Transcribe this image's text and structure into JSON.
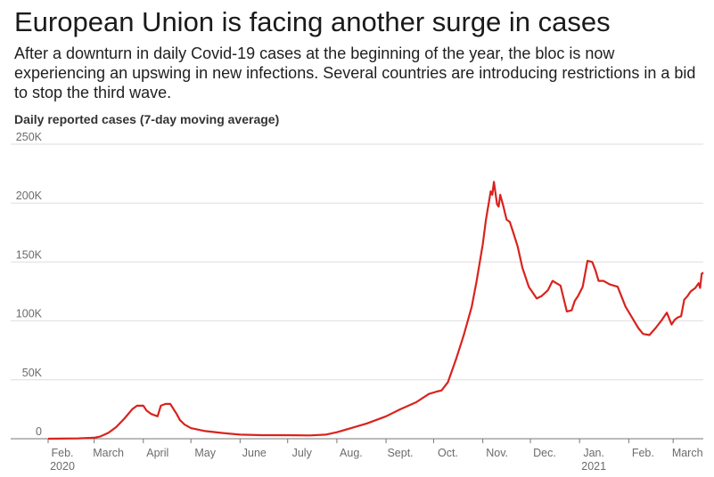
{
  "title": "European Union is facing another surge in cases",
  "subtitle": "After a downturn in daily Covid-19 cases at the beginning of the year, the bloc is now experiencing an upswing in new infections. Several countries are introducing restrictions in a bid to stop the third wave.",
  "chart_data": {
    "type": "line",
    "title": "European Union is facing another surge in cases",
    "ylabel": "Daily reported cases (7-day moving average)",
    "xlabel": "",
    "x_range": [
      "2020-02-01",
      "2021-03-20"
    ],
    "ylim": [
      0,
      250000
    ],
    "y_ticks": [
      {
        "value": 0,
        "label": "0"
      },
      {
        "value": 50000,
        "label": "50K"
      },
      {
        "value": 100000,
        "label": "100K"
      },
      {
        "value": 150000,
        "label": "150K"
      },
      {
        "value": 200000,
        "label": "200K"
      },
      {
        "value": 250000,
        "label": "250K"
      }
    ],
    "x_ticks": [
      {
        "date": "2020-02-01",
        "label": "Feb.",
        "sublabel": "2020"
      },
      {
        "date": "2020-03-01",
        "label": "March",
        "sublabel": ""
      },
      {
        "date": "2020-04-01",
        "label": "April",
        "sublabel": ""
      },
      {
        "date": "2020-05-01",
        "label": "May",
        "sublabel": ""
      },
      {
        "date": "2020-06-01",
        "label": "June",
        "sublabel": ""
      },
      {
        "date": "2020-07-01",
        "label": "July",
        "sublabel": ""
      },
      {
        "date": "2020-08-01",
        "label": "Aug.",
        "sublabel": ""
      },
      {
        "date": "2020-09-01",
        "label": "Sept.",
        "sublabel": ""
      },
      {
        "date": "2020-10-01",
        "label": "Oct.",
        "sublabel": ""
      },
      {
        "date": "2020-11-01",
        "label": "Nov.",
        "sublabel": ""
      },
      {
        "date": "2020-12-01",
        "label": "Dec.",
        "sublabel": ""
      },
      {
        "date": "2021-01-01",
        "label": "Jan.",
        "sublabel": "2021"
      },
      {
        "date": "2021-02-01",
        "label": "Feb.",
        "sublabel": ""
      },
      {
        "date": "2021-03-01",
        "label": "March",
        "sublabel": ""
      }
    ],
    "grid": true,
    "line_color": "#d9231d",
    "series": [
      {
        "x": [
          "2020-02-01",
          "2020-02-20",
          "2020-03-01",
          "2020-03-05",
          "2020-03-10",
          "2020-03-15",
          "2020-03-20",
          "2020-03-25",
          "2020-03-28",
          "2020-04-01",
          "2020-04-03",
          "2020-04-06",
          "2020-04-10",
          "2020-04-12",
          "2020-04-15",
          "2020-04-18",
          "2020-04-22",
          "2020-04-24",
          "2020-04-27",
          "2020-05-01",
          "2020-05-10",
          "2020-05-20",
          "2020-06-01",
          "2020-06-15",
          "2020-07-01",
          "2020-07-15",
          "2020-07-25",
          "2020-08-01",
          "2020-08-10",
          "2020-08-20",
          "2020-09-01",
          "2020-09-10",
          "2020-09-20",
          "2020-09-28",
          "2020-10-03",
          "2020-10-06",
          "2020-10-10",
          "2020-10-15",
          "2020-10-20",
          "2020-10-25",
          "2020-10-28",
          "2020-11-01",
          "2020-11-03",
          "2020-11-06",
          "2020-11-07",
          "2020-11-08",
          "2020-11-10",
          "2020-11-11",
          "2020-11-12",
          "2020-11-14",
          "2020-11-16",
          "2020-11-18",
          "2020-11-20",
          "2020-11-23",
          "2020-11-26",
          "2020-11-30",
          "2020-12-05",
          "2020-12-08",
          "2020-12-12",
          "2020-12-15",
          "2020-12-20",
          "2020-12-24",
          "2020-12-27",
          "2020-12-29",
          "2020-12-31",
          "2021-01-03",
          "2021-01-06",
          "2021-01-09",
          "2021-01-11",
          "2021-01-13",
          "2021-01-16",
          "2021-01-20",
          "2021-01-25",
          "2021-01-30",
          "2021-02-03",
          "2021-02-07",
          "2021-02-10",
          "2021-02-14",
          "2021-02-18",
          "2021-02-22",
          "2021-02-25",
          "2021-02-28",
          "2021-03-02",
          "2021-03-04",
          "2021-03-06",
          "2021-03-08",
          "2021-03-10",
          "2021-03-12",
          "2021-03-15",
          "2021-03-17",
          "2021-03-18",
          "2021-03-19",
          "2021-03-20"
        ],
        "y": [
          0,
          300,
          800,
          2000,
          5000,
          10000,
          17000,
          25000,
          28000,
          28000,
          24000,
          21000,
          19000,
          28000,
          29500,
          29500,
          21000,
          16000,
          12000,
          9000,
          6500,
          5000,
          3500,
          3000,
          3000,
          2800,
          3500,
          5500,
          9000,
          13000,
          19000,
          25000,
          31000,
          38000,
          40000,
          41000,
          48000,
          67000,
          88000,
          112000,
          133000,
          165000,
          186000,
          210000,
          207000,
          218000,
          199000,
          197000,
          207000,
          197000,
          186000,
          184000,
          176000,
          163000,
          145000,
          129000,
          119000,
          121000,
          126000,
          134000,
          130000,
          108000,
          109000,
          117000,
          121000,
          129000,
          151000,
          150000,
          143000,
          134000,
          134000,
          131000,
          129000,
          112000,
          103000,
          94000,
          89000,
          88000,
          94000,
          101000,
          107000,
          97000,
          101000,
          103000,
          104000,
          118000,
          121000,
          125000,
          128000,
          132000,
          128000,
          140000,
          141000
        ]
      }
    ]
  }
}
